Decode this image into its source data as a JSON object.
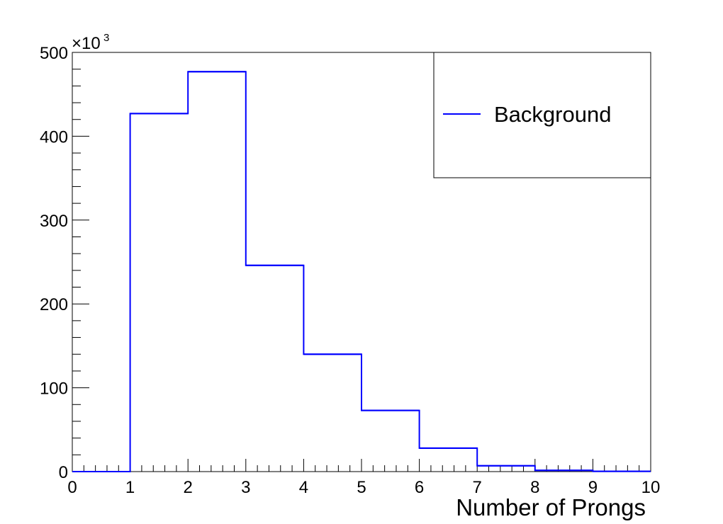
{
  "chart_data": {
    "type": "histogram",
    "title": "",
    "xlabel": "Number of Prongs",
    "ylabel": "",
    "y_multiplier": {
      "base": "×10",
      "exponent": "3"
    },
    "xlim": [
      0,
      10
    ],
    "ylim": [
      0,
      500
    ],
    "x_tick_labels": [
      "0",
      "1",
      "2",
      "3",
      "4",
      "5",
      "6",
      "7",
      "8",
      "9",
      "10"
    ],
    "y_tick_labels": [
      "0",
      "100",
      "200",
      "300",
      "400",
      "500"
    ],
    "bin_edges": [
      0,
      1,
      2,
      3,
      4,
      5,
      6,
      7,
      8,
      9,
      10
    ],
    "series": [
      {
        "name": "Background",
        "color": "#0000ff",
        "values": [
          0,
          427,
          477,
          246,
          140,
          73,
          28,
          7,
          1.5,
          0.3
        ]
      }
    ],
    "legend": {
      "position": "top-right",
      "entries": [
        "Background"
      ]
    },
    "grid": false
  }
}
